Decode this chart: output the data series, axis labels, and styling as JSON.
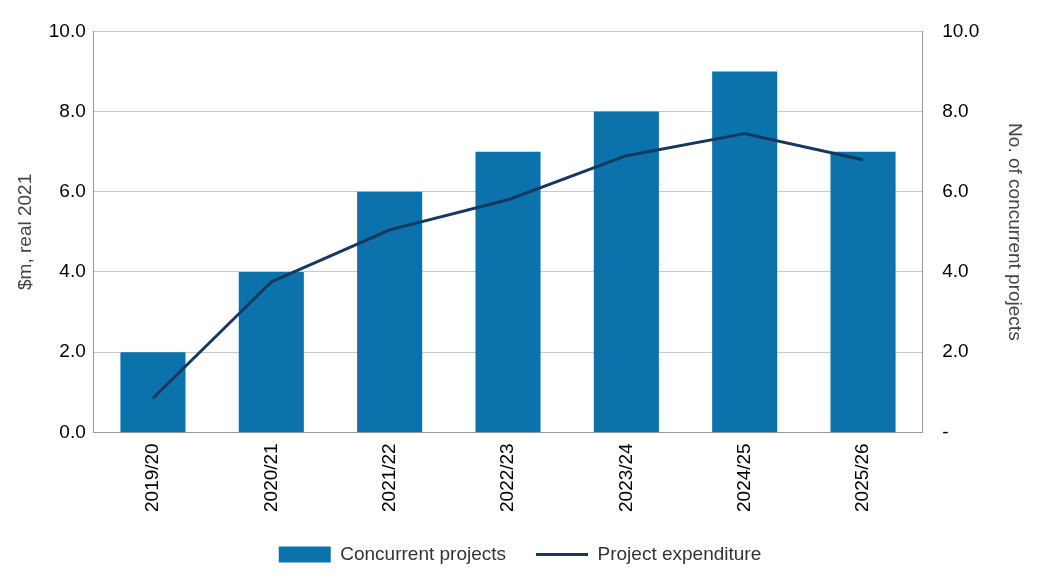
{
  "chart_data": {
    "type": "bar",
    "ylabel": "$m, real 2021",
    "y2label": "No. of concurrent projects",
    "categories": [
      "2019/20",
      "2020/21",
      "2021/22",
      "2022/23",
      "2023/24",
      "2024/25",
      "2025/26"
    ],
    "series": [
      {
        "name": "Concurrent projects",
        "axis": "y2",
        "color": "#0b72ab",
        "values": [
          2,
          4,
          6,
          7,
          8,
          9,
          7
        ]
      },
      {
        "name": "Project expenditure",
        "type": "line",
        "axis": "y",
        "color": "#17375e",
        "values": [
          0.85,
          3.75,
          5.05,
          5.8,
          6.9,
          7.45,
          6.8
        ]
      }
    ],
    "ylim": [
      0,
      10
    ],
    "yticks": [
      {
        "value": 0,
        "label": "0.0"
      },
      {
        "value": 2,
        "label": "2.0"
      },
      {
        "value": 4,
        "label": "4.0"
      },
      {
        "value": 6,
        "label": "6.0"
      },
      {
        "value": 8,
        "label": "8.0"
      },
      {
        "value": 10,
        "label": "10.0"
      }
    ],
    "y2lim": [
      0,
      10
    ],
    "y2ticks": [
      {
        "value": 0,
        "label": "-"
      },
      {
        "value": 2,
        "label": "2.0"
      },
      {
        "value": 4,
        "label": "4.0"
      },
      {
        "value": 6,
        "label": "6.0"
      },
      {
        "value": 8,
        "label": "8.0"
      },
      {
        "value": 10,
        "label": "10.0"
      }
    ],
    "grid": "y",
    "legend": "bottom",
    "marker": "none"
  }
}
